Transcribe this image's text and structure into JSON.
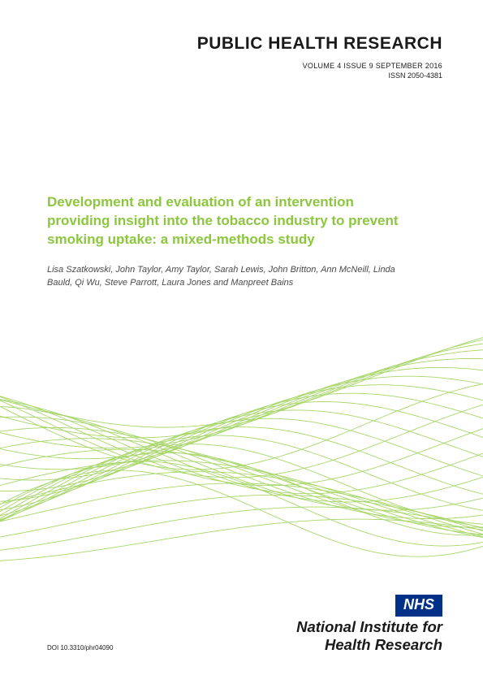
{
  "header": {
    "journal_name": "PUBLIC HEALTH RESEARCH",
    "volume_line": "VOLUME 4   ISSUE 9   SEPTEMBER 2016",
    "issn": "ISSN 2050-4381"
  },
  "article": {
    "title": "Development and evaluation of an intervention providing insight into the tobacco industry to prevent smoking uptake: a mixed-methods study",
    "authors": "Lisa Szatkowski, John Taylor, Amy Taylor, Sarah Lewis, John Britton, Ann McNeill, Linda Bauld, Qi Wu, Steve Parrott, Laura Jones and Manpreet Bains"
  },
  "footer": {
    "nhs_label": "NHS",
    "org_line1": "National Institute for",
    "org_line2": "Health Research",
    "doi": "DOI 10.3310/phr04090"
  },
  "colors": {
    "title_green": "#8cc63f",
    "wave_stroke": "#a8d66b",
    "nhs_blue": "#003087",
    "text_dark": "#1a1a1a",
    "authors_gray": "#4a4a4a",
    "background": "#ffffff"
  },
  "wave": {
    "line_count": 18,
    "stroke_width": 0.9,
    "stroke_color": "#a8d66b"
  }
}
